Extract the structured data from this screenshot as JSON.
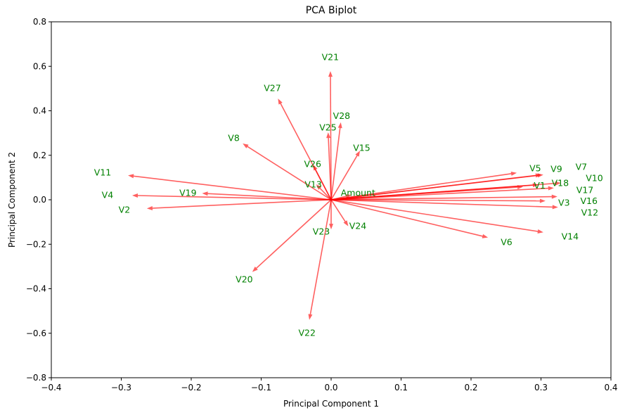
{
  "chart_data": {
    "type": "scatter",
    "subtype": "biplot-arrows",
    "title": "PCA Biplot",
    "xlabel": "Principal Component 1",
    "ylabel": "Principal Component 2",
    "xlim": [
      -0.4,
      0.4
    ],
    "ylim": [
      -0.8,
      0.8
    ],
    "xticks": [
      "−0.4",
      "−0.3",
      "−0.2",
      "−0.1",
      "0.0",
      "0.1",
      "0.2",
      "0.3",
      "0.4"
    ],
    "xtick_values": [
      -0.4,
      -0.3,
      -0.2,
      -0.1,
      0.0,
      0.1,
      0.2,
      0.3,
      0.4
    ],
    "yticks": [
      "−0.8",
      "−0.6",
      "−0.4",
      "−0.2",
      "0.0",
      "0.2",
      "0.4",
      "0.6",
      "0.8"
    ],
    "ytick_values": [
      -0.8,
      -0.6,
      -0.4,
      -0.2,
      0.0,
      0.2,
      0.4,
      0.6,
      0.8
    ],
    "grid": false,
    "label_scale": 1.15,
    "arrow_color": "#ff0000",
    "label_color": "#008000",
    "loadings": [
      {
        "name": "V1",
        "pc1": 0.268,
        "pc2": 0.057
      },
      {
        "name": "V2",
        "pc1": -0.257,
        "pc2": -0.038
      },
      {
        "name": "V3",
        "pc1": 0.3,
        "pc2": -0.005
      },
      {
        "name": "V4",
        "pc1": -0.278,
        "pc2": 0.019
      },
      {
        "name": "V5",
        "pc1": 0.259,
        "pc2": 0.118
      },
      {
        "name": "V6",
        "pc1": 0.218,
        "pc2": -0.165
      },
      {
        "name": "V7",
        "pc1": 0.297,
        "pc2": 0.11
      },
      {
        "name": "V8",
        "pc1": -0.121,
        "pc2": 0.242
      },
      {
        "name": "V9",
        "pc1": 0.294,
        "pc2": 0.11
      },
      {
        "name": "V10",
        "pc1": 0.322,
        "pc2": 0.074
      },
      {
        "name": "V11",
        "pc1": -0.284,
        "pc2": 0.107
      },
      {
        "name": "V12",
        "pc1": 0.318,
        "pc2": -0.033
      },
      {
        "name": "V13",
        "pc1": -0.017,
        "pc2": 0.055
      },
      {
        "name": "V14",
        "pc1": 0.297,
        "pc2": -0.143
      },
      {
        "name": "V15",
        "pc1": 0.038,
        "pc2": 0.203
      },
      {
        "name": "V16",
        "pc1": 0.317,
        "pc2": 0.014
      },
      {
        "name": "V17",
        "pc1": 0.312,
        "pc2": 0.052
      },
      {
        "name": "V18",
        "pc1": 0.29,
        "pc2": 0.066
      },
      {
        "name": "V19",
        "pc1": -0.178,
        "pc2": 0.028
      },
      {
        "name": "V20",
        "pc1": -0.108,
        "pc2": -0.311
      },
      {
        "name": "V21",
        "pc1": -0.001,
        "pc2": 0.558
      },
      {
        "name": "V22",
        "pc1": -0.03,
        "pc2": -0.52
      },
      {
        "name": "V23",
        "pc1": 0.0,
        "pc2": -0.113
      },
      {
        "name": "V24",
        "pc1": 0.021,
        "pc2": -0.102
      },
      {
        "name": "V25",
        "pc1": -0.004,
        "pc2": 0.283
      },
      {
        "name": "V26",
        "pc1": -0.023,
        "pc2": 0.14
      },
      {
        "name": "V27",
        "pc1": -0.073,
        "pc2": 0.437
      },
      {
        "name": "V28",
        "pc1": 0.013,
        "pc2": 0.328
      },
      {
        "name": "Amount",
        "pc1": 0.023,
        "pc2": 0.017
      }
    ]
  }
}
